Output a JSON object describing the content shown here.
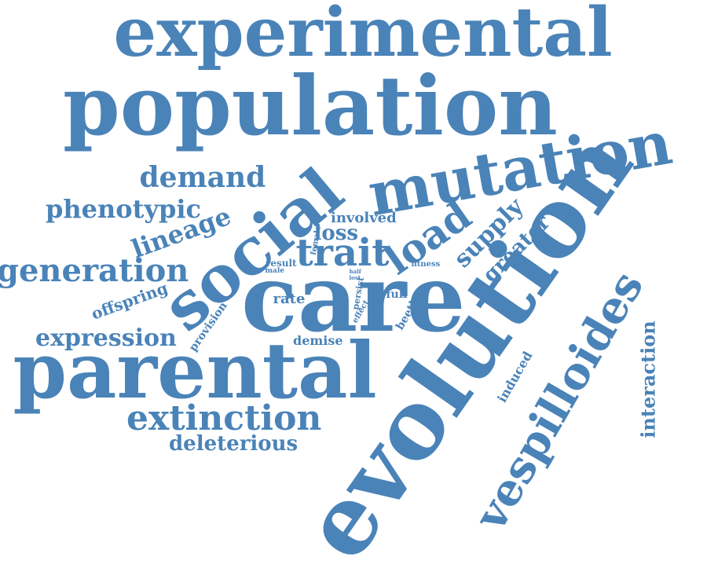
{
  "accent_color": "#4a83b8",
  "words": {
    "experimental": "experimental",
    "population": "population",
    "social": "social",
    "mutation": "mutation",
    "demand": "demand",
    "phenotypic": "phenotypic",
    "lineage": "lineage",
    "involved": "involved",
    "loss": "loss",
    "load": "load",
    "trait": "trait",
    "supply": "supply",
    "greater": "greater",
    "female": "female",
    "fitness": "fitness",
    "result": "result",
    "male": "male",
    "half": "half",
    "lost": "lost",
    "generation": "generation",
    "care": "care",
    "persist": "persist",
    "offspring": "offspring",
    "rate": "rate",
    "full": "full",
    "effect": "effect",
    "beetle": "beetle",
    "provision": "provision",
    "expression": "expression",
    "demise": "demise",
    "parental": "parental",
    "evolution": "evolution",
    "induced": "induced",
    "interaction": "interaction",
    "extinction": "extinction",
    "vespilloides": "vespilloides",
    "deleterious": "deleterious"
  }
}
